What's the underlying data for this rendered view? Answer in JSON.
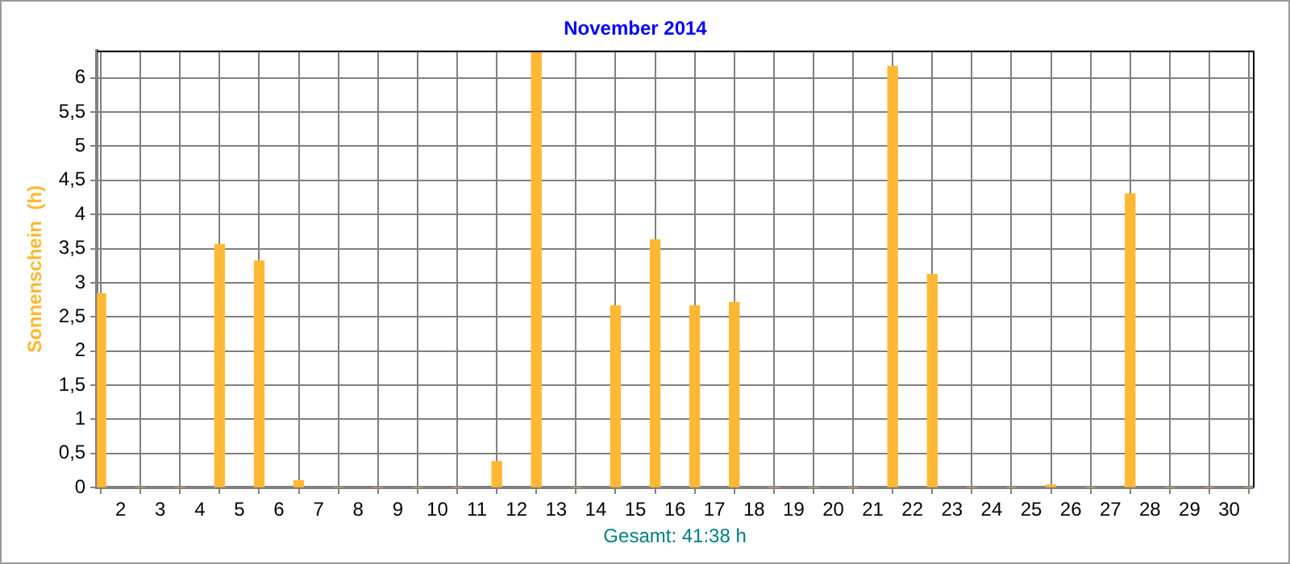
{
  "chart_data": {
    "type": "bar",
    "title": "November 2014",
    "ylabel": "Sonnenschein  (h)",
    "annotations": [
      "Gesamt: 41:38 h"
    ],
    "x": [
      1.5,
      2.5,
      3.5,
      4.5,
      5.5,
      6.5,
      7.5,
      8.5,
      9.5,
      10.5,
      11.5,
      12.5,
      13.5,
      14.5,
      15.5,
      16.5,
      17.5,
      18.5,
      19.5,
      20.5,
      21.5,
      22.5,
      23.5,
      24.5,
      25.5,
      26.5,
      27.5,
      28.5,
      29.5,
      30.5
    ],
    "values": [
      2.84,
      0,
      0,
      3.56,
      3.32,
      0.1,
      0,
      0,
      0,
      0,
      0.38,
      6.4,
      0,
      2.66,
      3.63,
      2.66,
      2.71,
      0,
      0,
      0,
      6.17,
      3.12,
      0,
      0,
      0.04,
      0,
      4.3,
      0,
      0,
      0
    ],
    "color": "#ffb833",
    "xlim": [
      1.4,
      30.6
    ],
    "xticks": [
      2,
      3,
      4,
      5,
      6,
      7,
      8,
      9,
      10,
      11,
      12,
      13,
      14,
      15,
      16,
      17,
      18,
      19,
      20,
      21,
      22,
      23,
      24,
      25,
      26,
      27,
      28,
      29,
      30
    ],
    "ylim": [
      0,
      6.4
    ],
    "yticks": [
      0,
      {
        "value": 0.5,
        "label": "0,5"
      },
      1,
      {
        "value": 1.5,
        "label": "1,5"
      },
      2,
      {
        "value": 2.5,
        "label": "2,5"
      },
      3,
      {
        "value": 3.5,
        "label": "3,5"
      },
      4,
      {
        "value": 4.5,
        "label": "4,5"
      },
      5,
      {
        "value": 5.5,
        "label": "5,5"
      },
      6
    ],
    "grid": true,
    "line_style": "dashed"
  }
}
